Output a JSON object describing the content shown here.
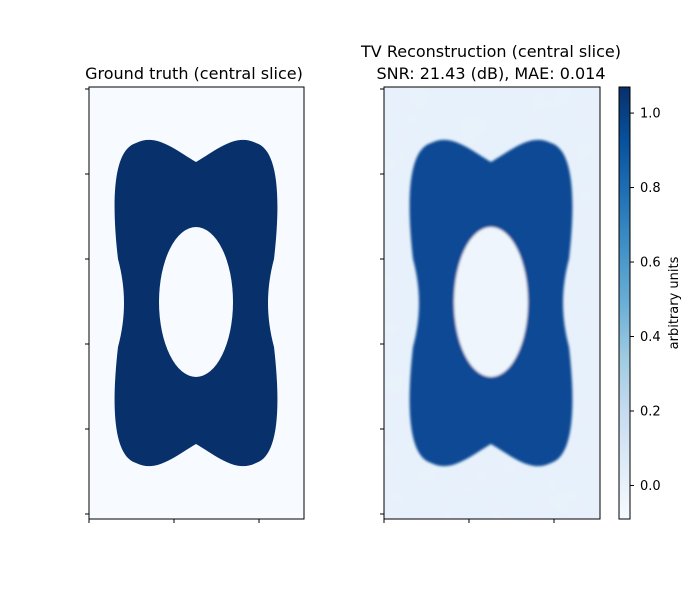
{
  "chart_data": [
    {
      "type": "heatmap",
      "title": "Ground truth (central slice)",
      "colormap": "Blues",
      "shape": "x-shaped phantom with elliptical hole",
      "value_inside": 1.0,
      "value_outside": 0.0,
      "value_hole": 0.0,
      "x_ticks_labeled": false,
      "y_ticks_labeled": false
    },
    {
      "type": "heatmap",
      "title_line1": "TV Reconstruction (central slice)",
      "title_line2": "SNR: 21.43 (dB), MAE: 0.014",
      "colormap": "Blues",
      "value_inside": 0.95,
      "value_outside": 0.05,
      "value_hole": 0.02,
      "x_ticks_labeled": false,
      "y_ticks_labeled": false
    }
  ],
  "colorbar": {
    "label": "arbitrary units",
    "range": [
      -0.09,
      1.07
    ],
    "ticks": [
      0.0,
      0.2,
      0.4,
      0.6,
      0.8,
      1.0
    ],
    "tick_labels": [
      "0.0",
      "0.2",
      "0.4",
      "0.6",
      "0.8",
      "1.0"
    ],
    "colors": [
      "#f7fbff",
      "#deebf7",
      "#c6dbef",
      "#9ecae1",
      "#6baed6",
      "#4292c6",
      "#2171b5",
      "#08519c",
      "#08306b"
    ]
  }
}
